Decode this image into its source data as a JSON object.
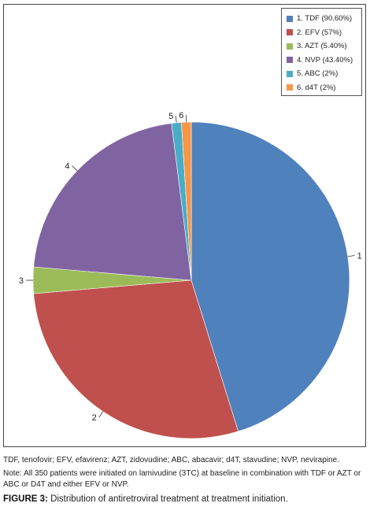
{
  "chart_data": {
    "type": "pie",
    "slices": [
      {
        "label": "1",
        "legend": "1. TDF (90.60%)",
        "value": 90.6,
        "color": "#4F81BD"
      },
      {
        "label": "2",
        "legend": "2. EFV (57%)",
        "value": 57,
        "color": "#C0504D"
      },
      {
        "label": "3",
        "legend": "3. AZT (5.40%)",
        "value": 5.4,
        "color": "#9BBB59"
      },
      {
        "label": "4",
        "legend": "4. NVP (43.40%)",
        "value": 43.4,
        "color": "#8064A2"
      },
      {
        "label": "5",
        "legend": "5. ABC (2%)",
        "value": 2,
        "color": "#4BACC6"
      },
      {
        "label": "6",
        "legend": "6. d4T (2%)",
        "value": 2,
        "color": "#F79646"
      }
    ],
    "legend_position": "top-right"
  },
  "captions": {
    "abbreviations": "TDF, tenofovir; EFV, efavirenz; AZT, zidovudine; ABC, abacavir; d4T, stavudine; NVP, nevirapine.",
    "note": "Note: All 350 patients were initiated on lamivudine (3TC) at baseline in combination with TDF or AZT or ABC or D4T and either EFV or NVP.",
    "figure_label": "FIGURE 3:",
    "figure_title": " Distribution of antiretroviral treatment at treatment initiation."
  }
}
